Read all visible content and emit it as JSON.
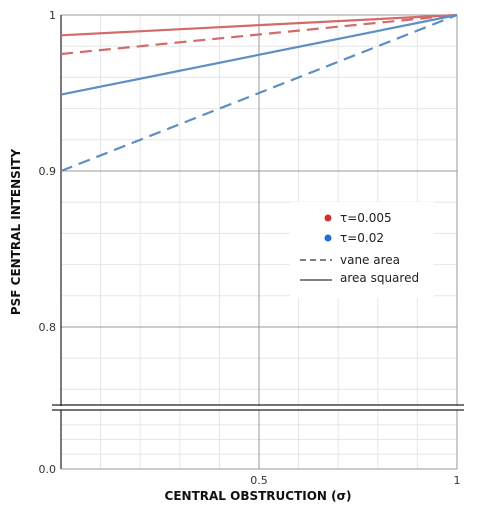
{
  "chart_data": {
    "type": "line",
    "xlabel": "CENTRAL OBSTRUCTION (σ)",
    "ylabel": "PSF CENTRAL INTENSITY",
    "xlim": [
      0,
      1
    ],
    "ylim": [
      0.75,
      1
    ],
    "y_axis_break": "between 0.75 and 0.0",
    "x_ticks": [
      {
        "value": 0.5,
        "label": "0.5"
      },
      {
        "value": 1,
        "label": "1"
      }
    ],
    "y_ticks": [
      {
        "value": 1,
        "label": "1"
      },
      {
        "value": 0.9,
        "label": "0.9"
      },
      {
        "value": 0.8,
        "label": "0.8"
      },
      {
        "value": 0,
        "label": "0.0"
      }
    ],
    "grid": true,
    "legend_position": "center-right",
    "colors": {
      "tau_0005": "#d36b6b",
      "tau_002": "#5e8fc4"
    },
    "legend": [
      {
        "label": "τ=0.005",
        "marker": "dot",
        "color": "#d32f2f"
      },
      {
        "label": "τ=0.02",
        "marker": "dot",
        "color": "#1e6fd0"
      },
      {
        "label": "vane area",
        "marker": "dashed-line",
        "color": "#333333"
      },
      {
        "label": "area squared",
        "marker": "solid-line",
        "color": "#333333"
      }
    ],
    "series": [
      {
        "tau": 0.005,
        "style": "solid",
        "x": [
          0,
          1
        ],
        "y": [
          0.987,
          1.0
        ]
      },
      {
        "tau": 0.005,
        "style": "dashed",
        "x": [
          0,
          1
        ],
        "y": [
          0.975,
          1.0
        ]
      },
      {
        "tau": 0.02,
        "style": "solid",
        "x": [
          0,
          1
        ],
        "y": [
          0.949,
          1.0
        ]
      },
      {
        "tau": 0.02,
        "style": "dashed",
        "x": [
          0,
          1
        ],
        "y": [
          0.9,
          1.0
        ]
      }
    ]
  }
}
